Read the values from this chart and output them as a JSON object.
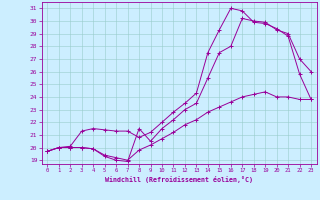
{
  "xlabel": "Windchill (Refroidissement éolien,°C)",
  "bg_color": "#cceeff",
  "line_color": "#990099",
  "grid_color": "#99cccc",
  "xlim": [
    -0.5,
    23.5
  ],
  "ylim": [
    18.7,
    31.5
  ],
  "xticks": [
    0,
    1,
    2,
    3,
    4,
    5,
    6,
    7,
    8,
    9,
    10,
    11,
    12,
    13,
    14,
    15,
    16,
    17,
    18,
    19,
    20,
    21,
    22,
    23
  ],
  "yticks": [
    19,
    20,
    21,
    22,
    23,
    24,
    25,
    26,
    27,
    28,
    29,
    30,
    31
  ],
  "line1_x": [
    0,
    1,
    2,
    3,
    4,
    5,
    6,
    7,
    8,
    9,
    10,
    11,
    12,
    13,
    14,
    15,
    16,
    17,
    18,
    19,
    20,
    21,
    22,
    23
  ],
  "line1_y": [
    19.7,
    20.0,
    20.0,
    20.0,
    19.9,
    19.4,
    19.2,
    19.0,
    19.8,
    20.2,
    20.7,
    21.2,
    21.8,
    22.2,
    22.8,
    23.2,
    23.6,
    24.0,
    24.2,
    24.4,
    24.0,
    24.0,
    23.8,
    23.8
  ],
  "line2_x": [
    0,
    1,
    2,
    3,
    4,
    5,
    6,
    7,
    8,
    9,
    10,
    11,
    12,
    13,
    14,
    15,
    16,
    17,
    18,
    19,
    20,
    21,
    22,
    23
  ],
  "line2_y": [
    19.7,
    20.0,
    20.1,
    21.3,
    21.5,
    21.4,
    21.3,
    21.3,
    20.8,
    21.2,
    22.0,
    22.8,
    23.5,
    24.3,
    27.5,
    29.3,
    31.0,
    30.8,
    29.9,
    29.8,
    29.4,
    28.8,
    25.8,
    23.8
  ],
  "line3_x": [
    0,
    1,
    2,
    3,
    4,
    5,
    6,
    7,
    8,
    9,
    10,
    11,
    12,
    13,
    14,
    15,
    16,
    17,
    18,
    19,
    20,
    21,
    22,
    23
  ],
  "line3_y": [
    19.7,
    20.0,
    20.0,
    20.0,
    19.9,
    19.3,
    19.0,
    18.9,
    21.5,
    20.5,
    21.5,
    22.2,
    23.0,
    23.5,
    25.5,
    27.5,
    28.0,
    30.2,
    30.0,
    29.9,
    29.3,
    29.0,
    27.0,
    26.0
  ]
}
